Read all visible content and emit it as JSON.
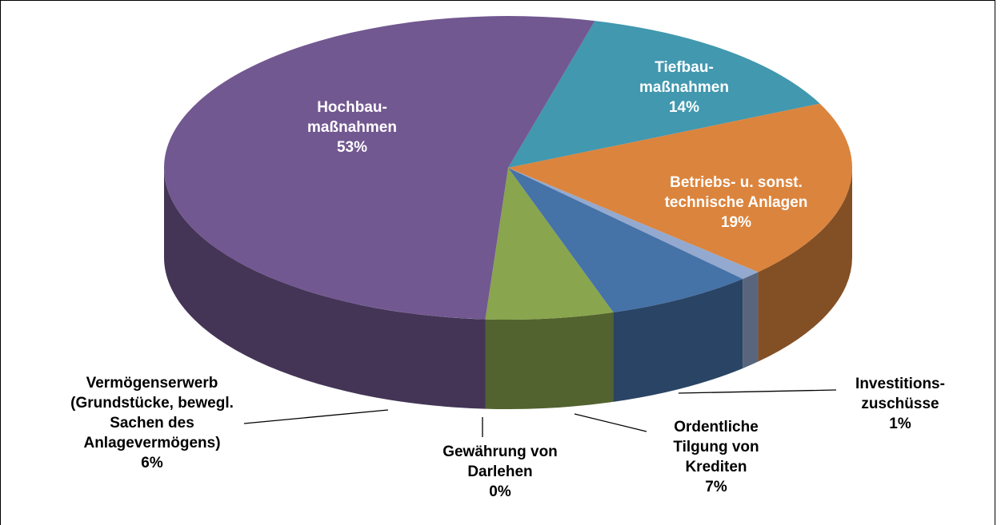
{
  "chart_data": {
    "type": "pie3d",
    "categories": [
      "Tiefbau-\nmaßnahmen",
      "Betriebs- u. sonst.\ntechnische Anlagen",
      "Investitions-\nzuschüsse",
      "Ordentliche\nTilgung von\nKrediten",
      "Gewährung von\nDarlehen",
      "Vermögenserwerb\n(Grundstücke, bewegl.\nSachen des\nAnlagevermögens)",
      "Hochbau-\nmaßnahmen"
    ],
    "values": [
      14,
      19,
      1,
      7,
      0,
      6,
      53
    ],
    "value_labels": [
      "14%",
      "19%",
      "1%",
      "7%",
      "0%",
      "6%",
      "53%"
    ],
    "colors": [
      "#4198af",
      "#db843d",
      "#93a9cf",
      "#4572a7",
      "#aa4643",
      "#89a54e",
      "#725890"
    ]
  }
}
